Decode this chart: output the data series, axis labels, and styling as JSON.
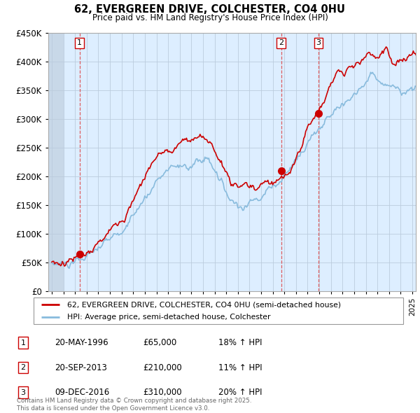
{
  "title": "62, EVERGREEN DRIVE, COLCHESTER, CO4 0HU",
  "subtitle": "Price paid vs. HM Land Registry's House Price Index (HPI)",
  "ylim": [
    0,
    450000
  ],
  "yticks": [
    0,
    50000,
    100000,
    150000,
    200000,
    250000,
    300000,
    350000,
    400000,
    450000
  ],
  "xlim_start": 1993.7,
  "xlim_end": 2025.3,
  "hpi_color": "#88bbdd",
  "price_color": "#cc0000",
  "bg_color": "#ddeeff",
  "hatch_color": "#c8d8e8",
  "grid_color": "#bbccdd",
  "transactions": [
    {
      "year": 1996.38,
      "price": 65000,
      "label": "1"
    },
    {
      "year": 2013.72,
      "price": 210000,
      "label": "2"
    },
    {
      "year": 2016.94,
      "price": 310000,
      "label": "3"
    }
  ],
  "legend_line1": "62, EVERGREEN DRIVE, COLCHESTER, CO4 0HU (semi-detached house)",
  "legend_line2": "HPI: Average price, semi-detached house, Colchester",
  "table_entries": [
    {
      "num": "1",
      "date": "20-MAY-1996",
      "price": "£65,000",
      "hpi": "18% ↑ HPI"
    },
    {
      "num": "2",
      "date": "20-SEP-2013",
      "price": "£210,000",
      "hpi": "11% ↑ HPI"
    },
    {
      "num": "3",
      "date": "09-DEC-2016",
      "price": "£310,000",
      "hpi": "20% ↑ HPI"
    }
  ],
  "footnote": "Contains HM Land Registry data © Crown copyright and database right 2025.\nThis data is licensed under the Open Government Licence v3.0."
}
